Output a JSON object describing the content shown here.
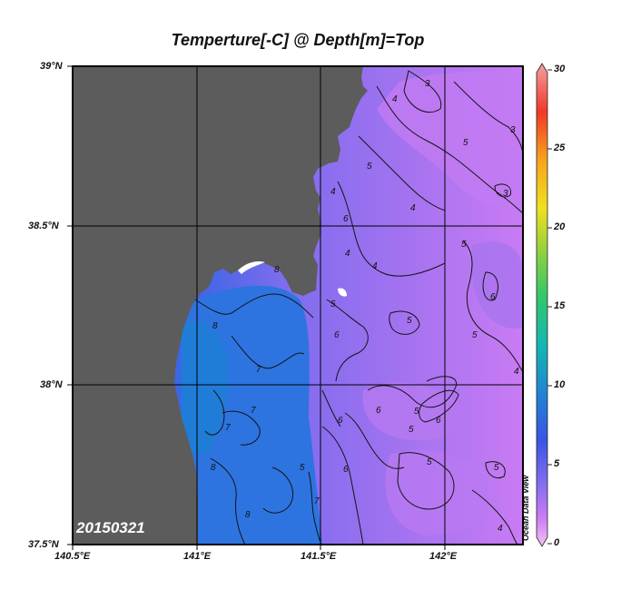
{
  "title": "Temperture[-C] @ Depth[m]=Top",
  "date_stamp": "20150321",
  "watermark": "Ocean Data View",
  "lat_labels": [
    "39°N",
    "38.5°N",
    "38°N",
    "37.5°N"
  ],
  "lon_labels": [
    "140.5°E",
    "141°E",
    "141.5°E",
    "142°E"
  ],
  "colorbar_labels": [
    "30",
    "25",
    "20",
    "15",
    "10",
    "5",
    "0"
  ],
  "colors": {
    "land": "#5c5c5c",
    "cold_ocean": "#d67cf2",
    "mid_ocean": "#8a6cee",
    "warm_coastal": "#2f72e0"
  },
  "contour_labels": [
    "3",
    "4",
    "3",
    "5",
    "5",
    "4",
    "3",
    "4",
    "6",
    "5",
    "4",
    "6",
    "5",
    "4",
    "5",
    "5",
    "6",
    "4",
    "6",
    "5",
    "8",
    "7",
    "7",
    "8",
    "7",
    "8",
    "6",
    "6",
    "5",
    "7",
    "6",
    "5",
    "5",
    "5",
    "8",
    "4"
  ],
  "chart_data": {
    "type": "heatmap",
    "variable": "Temperture[-C]",
    "depth": "Top",
    "date": "20150321",
    "lon_range": [
      140.5,
      142.3
    ],
    "lat_range": [
      37.5,
      39.0
    ],
    "colorbar_range": [
      0,
      30
    ],
    "colorbar_ticks": [
      0,
      5,
      10,
      15,
      20,
      25,
      30
    ],
    "contour_levels": [
      3,
      4,
      5,
      6,
      7,
      8
    ]
  }
}
